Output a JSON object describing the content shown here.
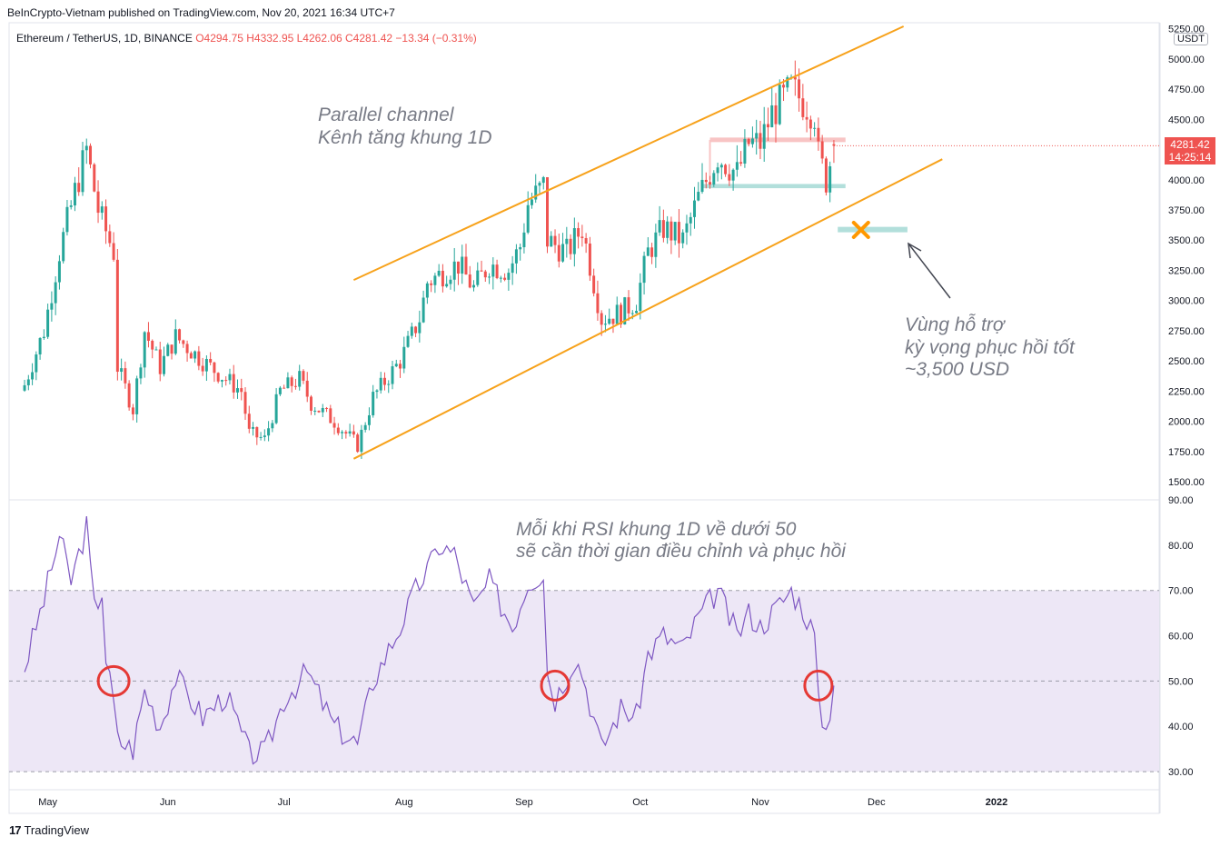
{
  "header": {
    "published": "BeInCrypto-Vietnam published on TradingView.com, Nov 20, 2021 16:34 UTC+7"
  },
  "legend": {
    "symbol": "Ethereum / TetherUS, 1D, BINANCE",
    "ohlc": "O4294.75 H4332.95 L4262.06 C4281.42 −13.34 (−0.31%)"
  },
  "price_axis": {
    "currency": "USDT",
    "current_price": "4281.42",
    "countdown": "14:25:14"
  },
  "annotations": {
    "channel_line1": "Parallel channel",
    "channel_line2": "Kênh tăng khung 1D",
    "support_line1": "Vùng hỗ trợ",
    "support_line2": "kỳ vọng phục hồi tốt",
    "support_line3": "~3,500 USD",
    "rsi_line1": "Mỗi khi RSI khung 1D về dưới 50",
    "rsi_line2": "sẽ cần thời gian điều chỉnh và phục hồi"
  },
  "footer": {
    "brand": "TradingView",
    "logo_text": "17"
  },
  "colors": {
    "up": "#26a69a",
    "down": "#ef5350",
    "channel": "#f7a21b",
    "rsi": "#7e57c2",
    "rsi_band": "#ede7f6",
    "support_zone": "#b2dfdb",
    "resistance_zone": "#f8c4c4",
    "marker": "#ff9800"
  },
  "chart_data": [
    {
      "type": "candlestick",
      "symbol": "ETH/USDT",
      "timeframe": "1D",
      "ylim": [
        1350,
        5300
      ],
      "y_ticks": [
        "1500.00",
        "1750.00",
        "2000.00",
        "2250.00",
        "2500.00",
        "2750.00",
        "3000.00",
        "3250.00",
        "3500.00",
        "3750.00",
        "4000.00",
        "4250.00",
        "4500.00",
        "4750.00",
        "5000.00",
        "5250.00"
      ],
      "x_ticks": [
        "May",
        "Jun",
        "Jul",
        "Aug",
        "Sep",
        "Oct",
        "Nov",
        "Dec",
        "2022"
      ],
      "close_anchors": [
        {
          "date": "2021-04-25",
          "close": 2300
        },
        {
          "date": "2021-04-30",
          "close": 2750
        },
        {
          "date": "2021-05-04",
          "close": 3400
        },
        {
          "date": "2021-05-08",
          "close": 3900
        },
        {
          "date": "2021-05-11",
          "close": 4250
        },
        {
          "date": "2021-05-14",
          "close": 3750
        },
        {
          "date": "2021-05-18",
          "close": 3400
        },
        {
          "date": "2021-05-19",
          "close": 2450
        },
        {
          "date": "2021-05-23",
          "close": 2100
        },
        {
          "date": "2021-05-26",
          "close": 2750
        },
        {
          "date": "2021-05-30",
          "close": 2450
        },
        {
          "date": "2021-06-03",
          "close": 2700
        },
        {
          "date": "2021-06-10",
          "close": 2500
        },
        {
          "date": "2021-06-16",
          "close": 2350
        },
        {
          "date": "2021-06-20",
          "close": 2250
        },
        {
          "date": "2021-06-22",
          "close": 1900
        },
        {
          "date": "2021-06-26",
          "close": 1850
        },
        {
          "date": "2021-06-30",
          "close": 2250
        },
        {
          "date": "2021-07-05",
          "close": 2350
        },
        {
          "date": "2021-07-08",
          "close": 2150
        },
        {
          "date": "2021-07-14",
          "close": 2000
        },
        {
          "date": "2021-07-20",
          "close": 1800
        },
        {
          "date": "2021-07-24",
          "close": 2200
        },
        {
          "date": "2021-07-31",
          "close": 2500
        },
        {
          "date": "2021-08-05",
          "close": 2850
        },
        {
          "date": "2021-08-07",
          "close": 3150
        },
        {
          "date": "2021-08-12",
          "close": 3250
        },
        {
          "date": "2021-08-15",
          "close": 3300
        },
        {
          "date": "2021-08-19",
          "close": 3100
        },
        {
          "date": "2021-08-23",
          "close": 3300
        },
        {
          "date": "2021-08-28",
          "close": 3250
        },
        {
          "date": "2021-08-31",
          "close": 3450
        },
        {
          "date": "2021-09-02",
          "close": 3800
        },
        {
          "date": "2021-09-06",
          "close": 3950
        },
        {
          "date": "2021-09-07",
          "close": 3500
        },
        {
          "date": "2021-09-12",
          "close": 3400
        },
        {
          "date": "2021-09-16",
          "close": 3600
        },
        {
          "date": "2021-09-21",
          "close": 2850
        },
        {
          "date": "2021-09-26",
          "close": 2900
        },
        {
          "date": "2021-09-30",
          "close": 3000
        },
        {
          "date": "2021-10-03",
          "close": 3400
        },
        {
          "date": "2021-10-07",
          "close": 3600
        },
        {
          "date": "2021-10-12",
          "close": 3500
        },
        {
          "date": "2021-10-16",
          "close": 3850
        },
        {
          "date": "2021-10-21",
          "close": 4200
        },
        {
          "date": "2021-10-26",
          "close": 4050
        },
        {
          "date": "2021-10-29",
          "close": 4300
        },
        {
          "date": "2021-11-01",
          "close": 4300
        },
        {
          "date": "2021-11-04",
          "close": 4550
        },
        {
          "date": "2021-11-09",
          "close": 4750
        },
        {
          "date": "2021-11-12",
          "close": 4650
        },
        {
          "date": "2021-11-15",
          "close": 4550
        },
        {
          "date": "2021-11-16",
          "close": 4200
        },
        {
          "date": "2021-11-18",
          "close": 4000
        },
        {
          "date": "2021-11-20",
          "close": 4281.42
        }
      ],
      "zones": [
        {
          "name": "resistance",
          "from": 4000,
          "to": 4330
        },
        {
          "name": "support",
          "from": 3930,
          "to": 3965
        },
        {
          "name": "expected support",
          "from": 3565,
          "to": 3610
        }
      ],
      "channel": {
        "upper": [
          {
            "date": "2021-07-19",
            "value": 3170
          },
          {
            "date": "2021-12-08",
            "value": 5270
          }
        ],
        "lower": [
          {
            "date": "2021-07-19",
            "value": 1690
          },
          {
            "date": "2021-12-18",
            "value": 4170
          }
        ]
      }
    },
    {
      "type": "line",
      "name": "RSI",
      "ylim": [
        26,
        90
      ],
      "y_ticks": [
        "30.00",
        "40.00",
        "50.00",
        "60.00",
        "70.00",
        "80.00",
        "90.00"
      ],
      "levels": [
        30,
        50,
        70
      ],
      "rsi_anchors": [
        {
          "date": "2021-04-25",
          "rsi": 53
        },
        {
          "date": "2021-04-30",
          "rsi": 68
        },
        {
          "date": "2021-05-04",
          "rsi": 82
        },
        {
          "date": "2021-05-07",
          "rsi": 72
        },
        {
          "date": "2021-05-11",
          "rsi": 84
        },
        {
          "date": "2021-05-13",
          "rsi": 66
        },
        {
          "date": "2021-05-15",
          "rsi": 70
        },
        {
          "date": "2021-05-16",
          "rsi": 55
        },
        {
          "date": "2021-05-18",
          "rsi": 45
        },
        {
          "date": "2021-05-19",
          "rsi": 37
        },
        {
          "date": "2021-05-23",
          "rsi": 35
        },
        {
          "date": "2021-05-26",
          "rsi": 48
        },
        {
          "date": "2021-05-30",
          "rsi": 40
        },
        {
          "date": "2021-06-03",
          "rsi": 51
        },
        {
          "date": "2021-06-10",
          "rsi": 42
        },
        {
          "date": "2021-06-16",
          "rsi": 47
        },
        {
          "date": "2021-06-22",
          "rsi": 34
        },
        {
          "date": "2021-06-26",
          "rsi": 34
        },
        {
          "date": "2021-07-01",
          "rsi": 46
        },
        {
          "date": "2021-07-07",
          "rsi": 52
        },
        {
          "date": "2021-07-14",
          "rsi": 40
        },
        {
          "date": "2021-07-20",
          "rsi": 36
        },
        {
          "date": "2021-07-24",
          "rsi": 50
        },
        {
          "date": "2021-07-31",
          "rsi": 62
        },
        {
          "date": "2021-08-04",
          "rsi": 70
        },
        {
          "date": "2021-08-08",
          "rsi": 76
        },
        {
          "date": "2021-08-10",
          "rsi": 80
        },
        {
          "date": "2021-08-14",
          "rsi": 78
        },
        {
          "date": "2021-08-19",
          "rsi": 66
        },
        {
          "date": "2021-08-23",
          "rsi": 72
        },
        {
          "date": "2021-08-29",
          "rsi": 62
        },
        {
          "date": "2021-09-02",
          "rsi": 72
        },
        {
          "date": "2021-09-06",
          "rsi": 74
        },
        {
          "date": "2021-09-07",
          "rsi": 52
        },
        {
          "date": "2021-09-09",
          "rsi": 46
        },
        {
          "date": "2021-09-14",
          "rsi": 55
        },
        {
          "date": "2021-09-16",
          "rsi": 52
        },
        {
          "date": "2021-09-21",
          "rsi": 35
        },
        {
          "date": "2021-09-26",
          "rsi": 44
        },
        {
          "date": "2021-09-30",
          "rsi": 42
        },
        {
          "date": "2021-10-03",
          "rsi": 56
        },
        {
          "date": "2021-10-07",
          "rsi": 60
        },
        {
          "date": "2021-10-12",
          "rsi": 57
        },
        {
          "date": "2021-10-16",
          "rsi": 64
        },
        {
          "date": "2021-10-21",
          "rsi": 70
        },
        {
          "date": "2021-10-26",
          "rsi": 60
        },
        {
          "date": "2021-10-29",
          "rsi": 65
        },
        {
          "date": "2021-11-01",
          "rsi": 62
        },
        {
          "date": "2021-11-04",
          "rsi": 65
        },
        {
          "date": "2021-11-09",
          "rsi": 70
        },
        {
          "date": "2021-11-12",
          "rsi": 66
        },
        {
          "date": "2021-11-15",
          "rsi": 60
        },
        {
          "date": "2021-11-16",
          "rsi": 45
        },
        {
          "date": "2021-11-18",
          "rsi": 39
        },
        {
          "date": "2021-11-20",
          "rsi": 49
        }
      ],
      "highlights": [
        {
          "date": "2021-05-18",
          "rsi": 50
        },
        {
          "date": "2021-09-09",
          "rsi": 49
        },
        {
          "date": "2021-11-16",
          "rsi": 49
        }
      ]
    }
  ]
}
